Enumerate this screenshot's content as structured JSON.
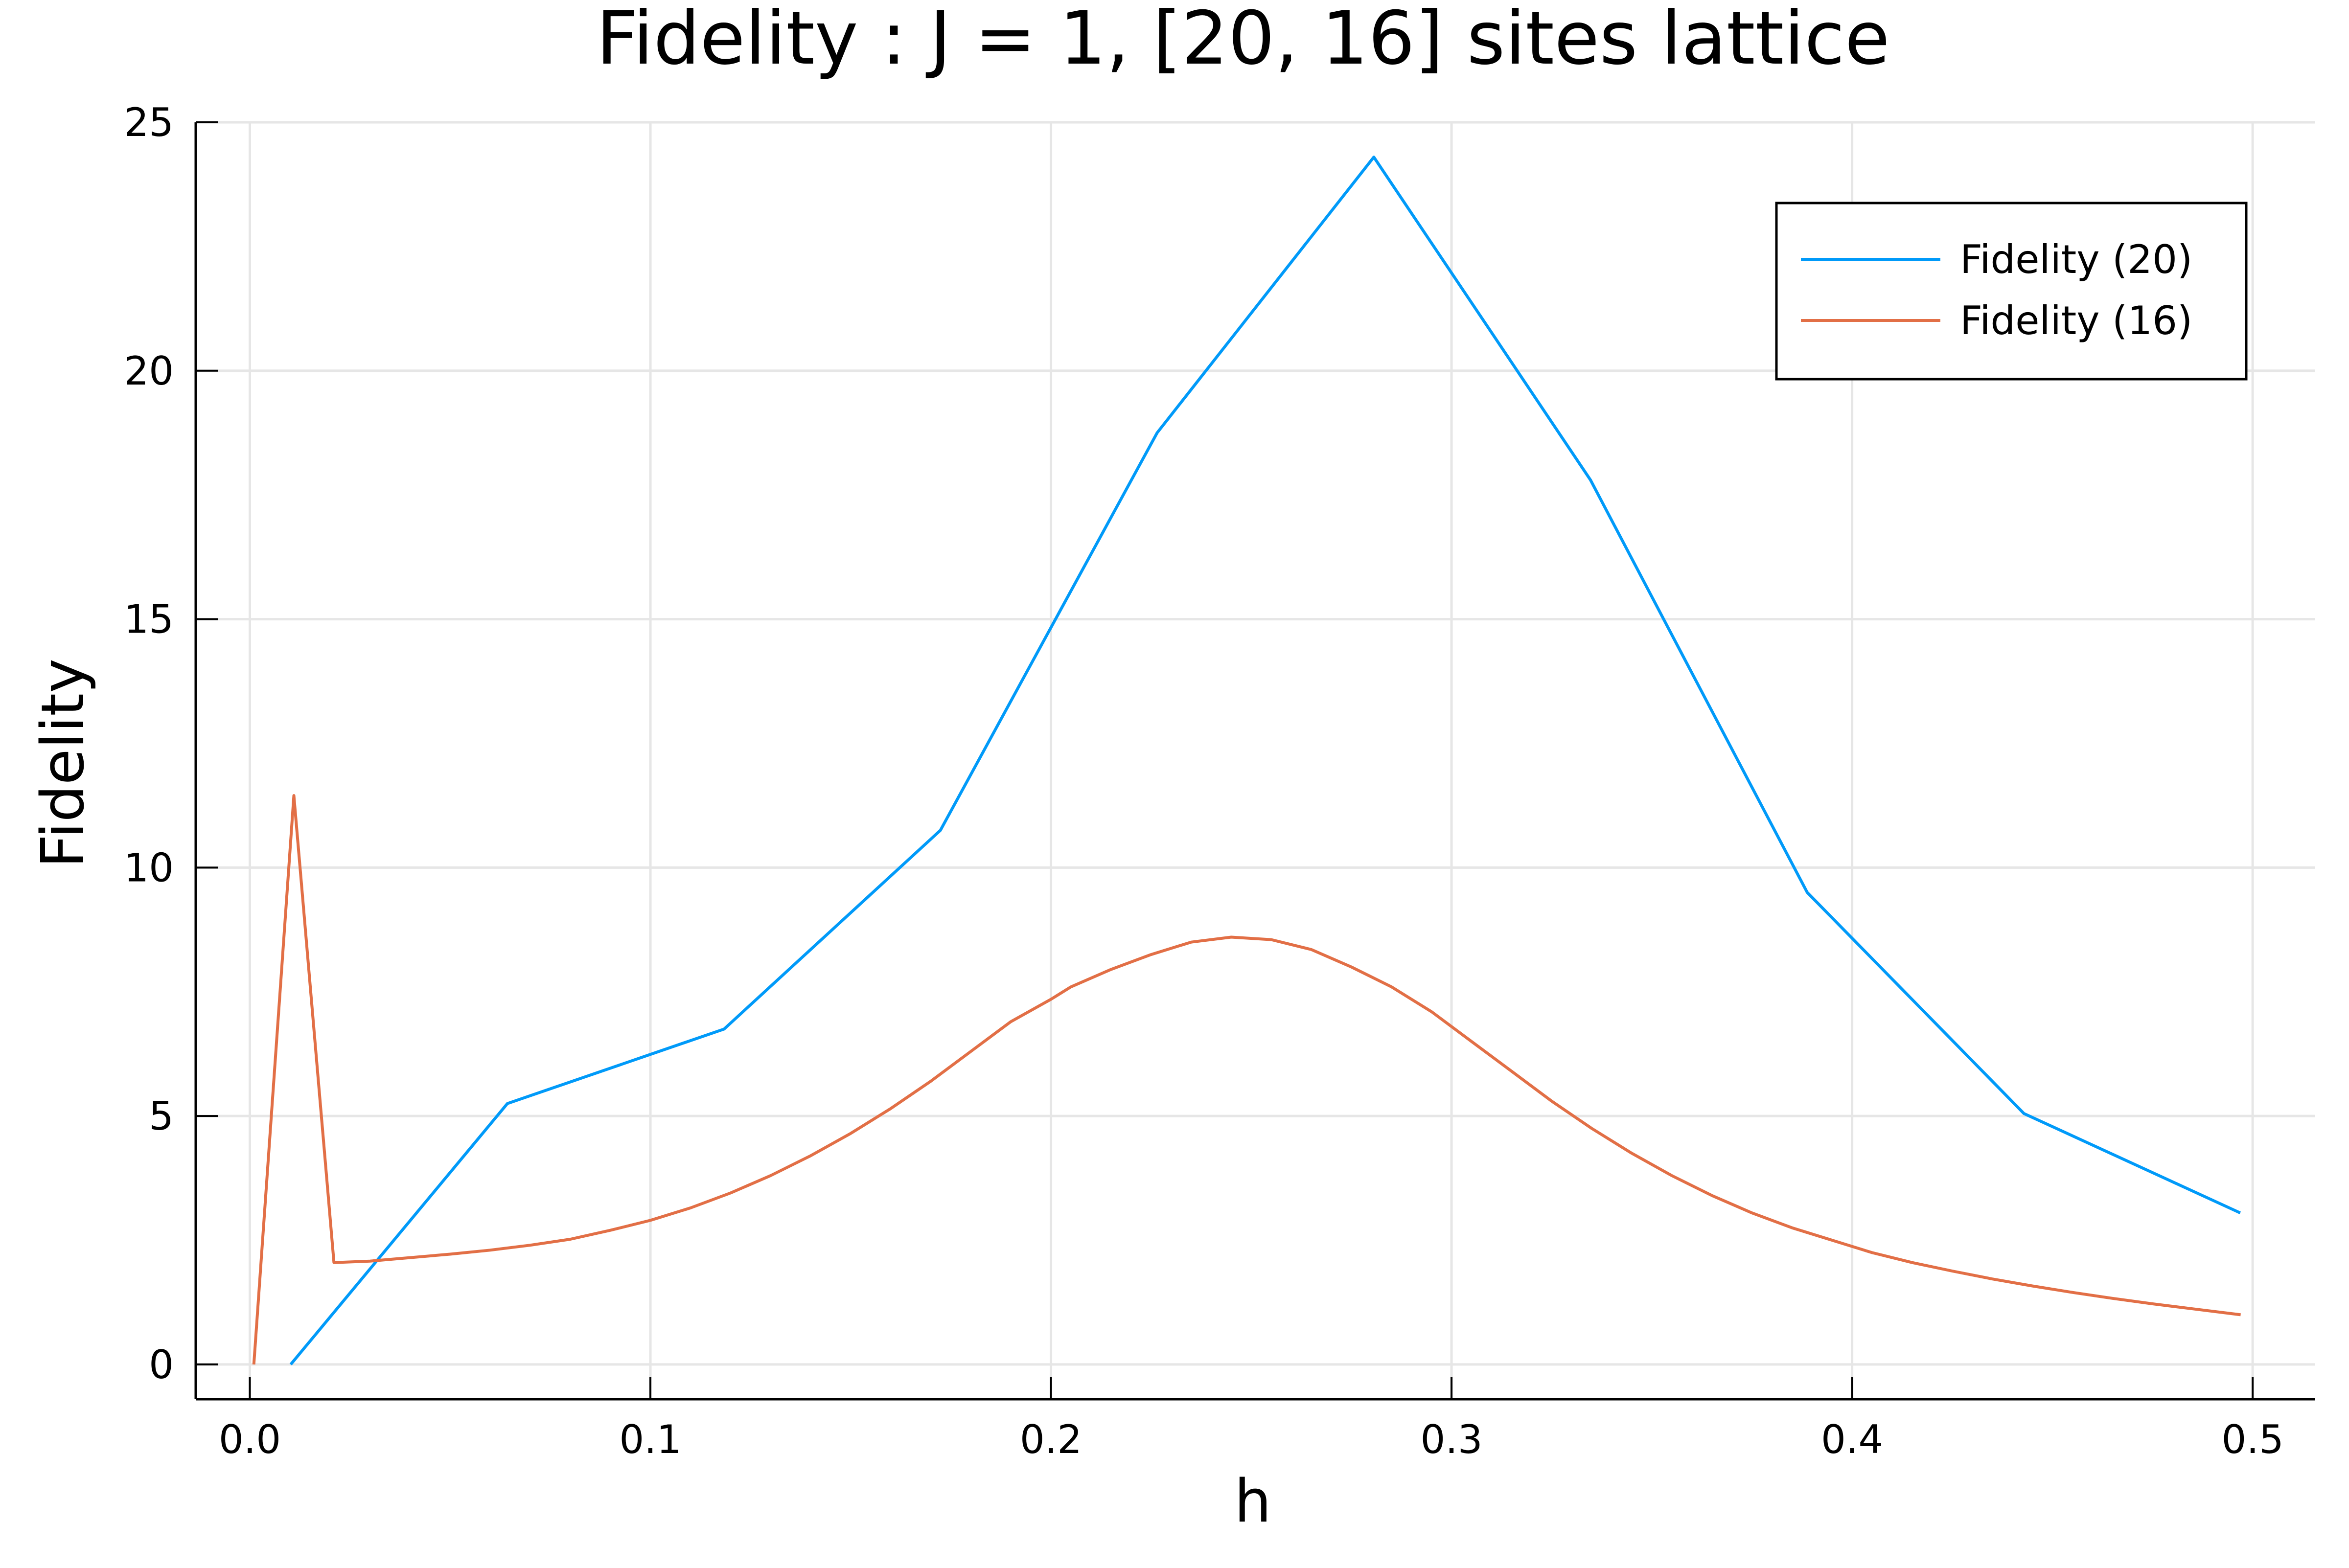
{
  "chart_data": {
    "type": "line",
    "title": "Fidelity : J = 1, [20, 16] sites lattice",
    "xlabel": "h",
    "ylabel": "Fidelity",
    "xlim": [
      -0.0135,
      0.5155
    ],
    "ylim": [
      -0.7,
      25.0
    ],
    "xticks": [
      0.0,
      0.1,
      0.2,
      0.3,
      0.4,
      0.5
    ],
    "xtick_labels": [
      "0.0",
      "0.1",
      "0.2",
      "0.3",
      "0.4",
      "0.5"
    ],
    "yticks": [
      0,
      5,
      10,
      15,
      20,
      25
    ],
    "ytick_labels": [
      "0",
      "5",
      "10",
      "15",
      "20",
      "25"
    ],
    "grid": true,
    "legend_position": "top-right",
    "series": [
      {
        "name": "Fidelity (20)",
        "color": "#009AF9",
        "x": [
          0.0102,
          0.0643,
          0.1184,
          0.1724,
          0.2265,
          0.2806,
          0.3347,
          0.3888,
          0.4429,
          0.4969
        ],
        "y": [
          0.0,
          5.25,
          6.75,
          10.75,
          18.75,
          24.3,
          17.8,
          9.5,
          5.05,
          3.05
        ]
      },
      {
        "name": "Fidelity (16)",
        "color": "#E26F46",
        "x": [
          0.001,
          0.011,
          0.021,
          0.03,
          0.04,
          0.05,
          0.06,
          0.07,
          0.08,
          0.09,
          0.1,
          0.11,
          0.12,
          0.13,
          0.14,
          0.15,
          0.16,
          0.17,
          0.18,
          0.19,
          0.2,
          0.205,
          0.215,
          0.225,
          0.235,
          0.245,
          0.255,
          0.265,
          0.275,
          0.285,
          0.295,
          0.305,
          0.315,
          0.325,
          0.335,
          0.345,
          0.355,
          0.365,
          0.375,
          0.385,
          0.395,
          0.405,
          0.415,
          0.425,
          0.435,
          0.445,
          0.455,
          0.465,
          0.475,
          0.485,
          0.497
        ],
        "y": [
          0.0,
          11.45,
          2.05,
          2.08,
          2.15,
          2.22,
          2.3,
          2.4,
          2.52,
          2.7,
          2.9,
          3.15,
          3.45,
          3.8,
          4.2,
          4.65,
          5.15,
          5.7,
          6.3,
          6.9,
          7.35,
          7.6,
          7.95,
          8.25,
          8.5,
          8.6,
          8.55,
          8.35,
          8.0,
          7.6,
          7.1,
          6.5,
          5.9,
          5.3,
          4.75,
          4.25,
          3.8,
          3.4,
          3.05,
          2.75,
          2.5,
          2.25,
          2.05,
          1.88,
          1.72,
          1.58,
          1.45,
          1.33,
          1.22,
          1.12,
          1.0
        ]
      }
    ]
  }
}
